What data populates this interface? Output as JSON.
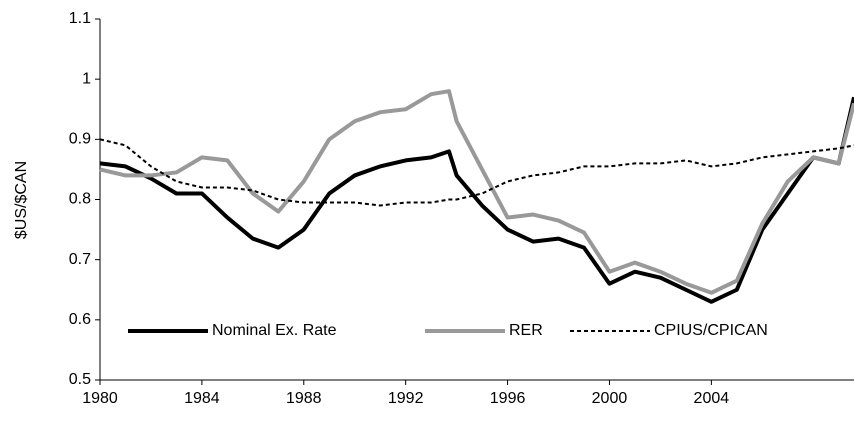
{
  "chart_data": {
    "type": "line",
    "y_label": "$US/$CAN",
    "x": [
      1980,
      1981,
      1982,
      1983,
      1984,
      1985,
      1986,
      1987,
      1988,
      1989,
      1990,
      1991,
      1992,
      1993,
      1993.7,
      1994,
      1995,
      1996,
      1997,
      1998,
      1999,
      2000,
      2001,
      2002,
      2003,
      2004,
      2005,
      2006,
      2007,
      2008,
      2009,
      2009.6
    ],
    "series": [
      {
        "name": "Nominal Ex. Rate",
        "color": "#000000",
        "style": "solid",
        "values": [
          0.86,
          0.855,
          0.835,
          0.81,
          0.81,
          0.77,
          0.735,
          0.72,
          0.75,
          0.81,
          0.84,
          0.855,
          0.865,
          0.87,
          0.88,
          0.84,
          0.79,
          0.75,
          0.73,
          0.735,
          0.72,
          0.66,
          0.68,
          0.67,
          0.65,
          0.63,
          0.65,
          0.75,
          0.81,
          0.87,
          0.86,
          0.97
        ]
      },
      {
        "name": "RER",
        "color": "#999999",
        "style": "solid",
        "values": [
          0.85,
          0.84,
          0.84,
          0.845,
          0.87,
          0.865,
          0.81,
          0.78,
          0.83,
          0.9,
          0.93,
          0.945,
          0.95,
          0.975,
          0.98,
          0.93,
          0.85,
          0.77,
          0.775,
          0.765,
          0.745,
          0.68,
          0.695,
          0.68,
          0.66,
          0.645,
          0.665,
          0.76,
          0.83,
          0.87,
          0.86,
          0.96
        ]
      },
      {
        "name": "CPIUS/CPICAN",
        "color": "#000000",
        "style": "dashed",
        "values": [
          0.9,
          0.89,
          0.855,
          0.83,
          0.82,
          0.82,
          0.815,
          0.8,
          0.795,
          0.795,
          0.795,
          0.79,
          0.795,
          0.795,
          0.8,
          0.8,
          0.81,
          0.83,
          0.84,
          0.845,
          0.855,
          0.855,
          0.86,
          0.86,
          0.865,
          0.855,
          0.86,
          0.87,
          0.875,
          0.88,
          0.885,
          0.89
        ]
      }
    ],
    "xlim": [
      1980,
      2009.6
    ],
    "xticks": [
      1980,
      1984,
      1988,
      1992,
      1996,
      2000,
      2004
    ],
    "ylim": [
      0.5,
      1.1
    ],
    "yticks": [
      0.5,
      0.6,
      0.7,
      0.8,
      0.9,
      1,
      1.1
    ],
    "grid": false,
    "legend": "lower center"
  }
}
